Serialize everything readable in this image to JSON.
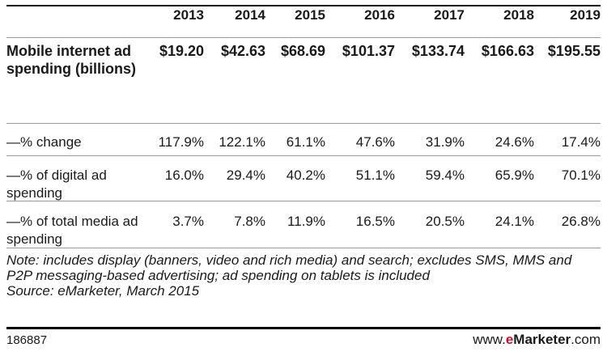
{
  "chart_data": {
    "type": "table",
    "columns": [
      "2013",
      "2014",
      "2015",
      "2016",
      "2017",
      "2018",
      "2019"
    ],
    "rows": [
      {
        "label": "Mobile internet ad spending (billions)",
        "values": [
          "$19.20",
          "$42.63",
          "$68.69",
          "$101.37",
          "$133.74",
          "$166.63",
          "$195.55"
        ]
      },
      {
        "label": "—% change",
        "values": [
          "117.9%",
          "122.1%",
          "61.1%",
          "47.6%",
          "31.9%",
          "24.6%",
          "17.4%"
        ]
      },
      {
        "label": "—% of digital ad spending",
        "values": [
          "16.0%",
          "29.4%",
          "40.2%",
          "51.1%",
          "59.4%",
          "65.9%",
          "70.1%"
        ]
      },
      {
        "label": "—% of total media ad spending",
        "values": [
          "3.7%",
          "7.8%",
          "11.9%",
          "16.5%",
          "20.5%",
          "24.1%",
          "26.8%"
        ]
      }
    ]
  },
  "note": "Note: includes display (banners, video and rich media) and search; excludes SMS, MMS and P2P messaging-based advertising; ad spending on tablets is included",
  "source": "Source: eMarketer, March 2015",
  "footer": {
    "id": "186887",
    "brand_prefix": "www.",
    "brand_e": "e",
    "brand_main": "Marketer",
    "brand_suffix": ".com",
    "brand_accent": "#c8102e"
  }
}
